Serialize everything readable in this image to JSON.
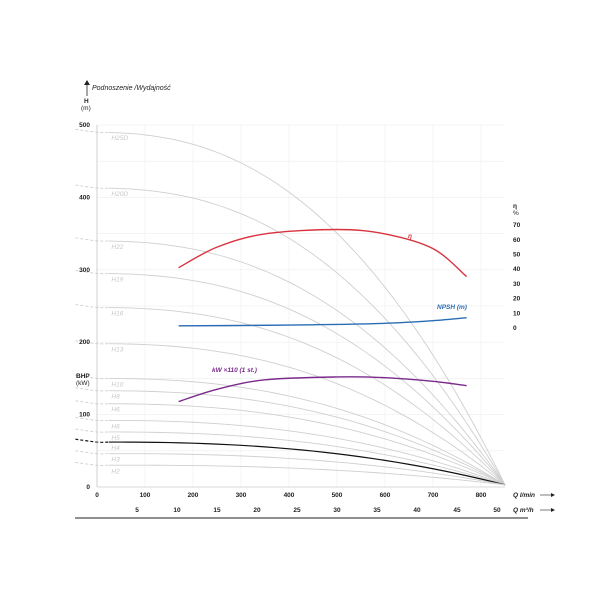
{
  "chart_data": {
    "type": "line",
    "title": "Podnoszenie /Wydajność",
    "y_left": {
      "label": "H",
      "unit": "(m)",
      "ticks": [
        0,
        100,
        200,
        300,
        400,
        500
      ],
      "range": [
        0,
        500
      ]
    },
    "y_bhp": {
      "label": "BHP",
      "unit": "(kW)"
    },
    "y_right": {
      "label": "η",
      "unit": "%",
      "ticks": [
        0,
        10,
        20,
        30,
        40,
        50,
        60,
        70
      ]
    },
    "x_primary": {
      "label": "Q l/min",
      "ticks": [
        0,
        100,
        200,
        300,
        400,
        500,
        600,
        700,
        800
      ],
      "range": [
        0,
        850
      ]
    },
    "x_secondary": {
      "label": "Q m³/h",
      "ticks": [
        5,
        10,
        15,
        20,
        25,
        30,
        35,
        40,
        45,
        50
      ]
    },
    "head_curves": [
      {
        "name": "H25D",
        "shutoff": 490,
        "highlight": false
      },
      {
        "name": "H20D",
        "shutoff": 413,
        "highlight": false
      },
      {
        "name": "H22",
        "shutoff": 340,
        "highlight": false
      },
      {
        "name": "H19",
        "shutoff": 295,
        "highlight": false
      },
      {
        "name": "H16",
        "shutoff": 248,
        "highlight": false
      },
      {
        "name": "H13",
        "shutoff": 198,
        "highlight": false
      },
      {
        "name": "H10",
        "shutoff": 150,
        "highlight": false
      },
      {
        "name": "H8",
        "shutoff": 133,
        "highlight": false
      },
      {
        "name": "H6",
        "shutoff": 115,
        "highlight": false
      },
      {
        "name": "H6",
        "shutoff": 92,
        "highlight": false
      },
      {
        "name": "H5",
        "shutoff": 76,
        "highlight": false
      },
      {
        "name": "H4",
        "shutoff": 62,
        "highlight": true
      },
      {
        "name": "H3",
        "shutoff": 46,
        "highlight": false
      },
      {
        "name": "H2",
        "shutoff": 30,
        "highlight": false
      }
    ],
    "efficiency": {
      "name": "η",
      "color": "#d9333f",
      "x": [
        170,
        250,
        350,
        500,
        600,
        700,
        770
      ],
      "y": [
        41,
        55,
        64,
        67,
        64,
        54,
        35
      ]
    },
    "npsh": {
      "name": "NPSH (m)",
      "color": "#2a6db5",
      "x": [
        170,
        300,
        450,
        600,
        700,
        770
      ],
      "y": [
        1.5,
        1.7,
        2.2,
        3.2,
        5,
        7
      ]
    },
    "power": {
      "name": "kW ×110 (1 st.)",
      "color": "#7b2a8c",
      "x": [
        170,
        250,
        350,
        500,
        600,
        700,
        770
      ],
      "y": [
        118,
        135,
        148,
        152,
        151,
        146,
        140
      ]
    }
  }
}
